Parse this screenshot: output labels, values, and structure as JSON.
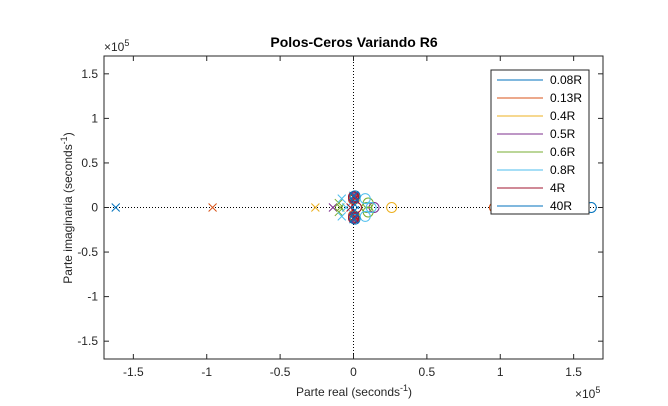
{
  "chart_data": {
    "type": "scatter",
    "title": "Polos-Ceros Variando R6",
    "xlabel_main": "Parte real (seconds",
    "xlabel_sup": "-1",
    "xlabel_end": ")",
    "ylabel_main": "Parte imaginaria (seconds",
    "ylabel_sup": "-1",
    "ylabel_end": ")",
    "exp_x": "×10",
    "exp_x_pow": "5",
    "exp_y": "×10",
    "exp_y_pow": "5",
    "xlim": [
      -1.7,
      1.7
    ],
    "ylim": [
      -1.7,
      1.7
    ],
    "xticks": [
      -1.5,
      -1,
      -0.5,
      0,
      0.5,
      1,
      1.5
    ],
    "xtick_labels": [
      "-1.5",
      "-1",
      "-0.5",
      "0",
      "0.5",
      "1",
      "1.5"
    ],
    "yticks": [
      -1.5,
      -1,
      -0.5,
      0,
      0.5,
      1,
      1.5
    ],
    "ytick_labels": [
      "-1.5",
      "-1",
      "-0.5",
      "0",
      "0.5",
      "1",
      "1.5"
    ],
    "legend_position": "top-right",
    "series": [
      {
        "name": "0.08R",
        "color": "#0072BD",
        "poles": [
          [
            -1.62,
            0
          ],
          [
            0.01,
            0.12
          ],
          [
            0.01,
            -0.12
          ]
        ],
        "zeros": [
          [
            1.62,
            0
          ],
          [
            0,
            0.1
          ],
          [
            0,
            -0.1
          ]
        ]
      },
      {
        "name": "0.13R",
        "color": "#D95319",
        "poles": [
          [
            -0.96,
            0
          ],
          [
            0.01,
            0.11
          ],
          [
            0.01,
            -0.11
          ]
        ],
        "zeros": [
          [
            0.96,
            0
          ],
          [
            0,
            0.09
          ],
          [
            0,
            -0.09
          ]
        ]
      },
      {
        "name": "0.4R",
        "color": "#EDB120",
        "poles": [
          [
            -0.26,
            0
          ],
          [
            0,
            0.12
          ],
          [
            0,
            -0.12
          ]
        ],
        "zeros": [
          [
            0.26,
            0
          ],
          [
            0.01,
            0.1
          ],
          [
            0.01,
            -0.1
          ]
        ]
      },
      {
        "name": "0.5R",
        "color": "#7E2F8E",
        "poles": [
          [
            -0.14,
            0
          ],
          [
            0.01,
            0.13
          ],
          [
            0.01,
            -0.13
          ]
        ],
        "zeros": [
          [
            0.14,
            0
          ],
          [
            0,
            0.11
          ],
          [
            0,
            -0.11
          ]
        ]
      },
      {
        "name": "0.6R",
        "color": "#77AC30",
        "poles": [
          [
            -0.1,
            0.05
          ],
          [
            -0.1,
            -0.05
          ],
          [
            -0.09,
            0
          ]
        ],
        "zeros": [
          [
            0.1,
            0.05
          ],
          [
            0.1,
            -0.05
          ],
          [
            0.09,
            0
          ]
        ]
      },
      {
        "name": "0.8R",
        "color": "#4DBEEE",
        "poles": [
          [
            -0.08,
            0.1
          ],
          [
            -0.08,
            -0.1
          ],
          [
            -0.05,
            0
          ]
        ],
        "zeros": [
          [
            0.08,
            0.1
          ],
          [
            0.08,
            -0.1
          ],
          [
            0.12,
            0
          ]
        ]
      },
      {
        "name": "4R",
        "color": "#A2142F",
        "poles": [
          [
            -0.02,
            0
          ],
          [
            0.01,
            0.1
          ],
          [
            0.01,
            -0.1
          ]
        ],
        "zeros": [
          [
            0.02,
            0
          ],
          [
            0,
            0.12
          ],
          [
            0,
            -0.12
          ]
        ]
      },
      {
        "name": "40R",
        "color": "#0072BD",
        "poles": [
          [
            0,
            0.13
          ],
          [
            0,
            -0.13
          ],
          [
            0.01,
            0.03
          ],
          [
            0.01,
            -0.03
          ]
        ],
        "zeros": [
          [
            0.01,
            0.13
          ],
          [
            0.01,
            -0.13
          ]
        ]
      }
    ]
  }
}
